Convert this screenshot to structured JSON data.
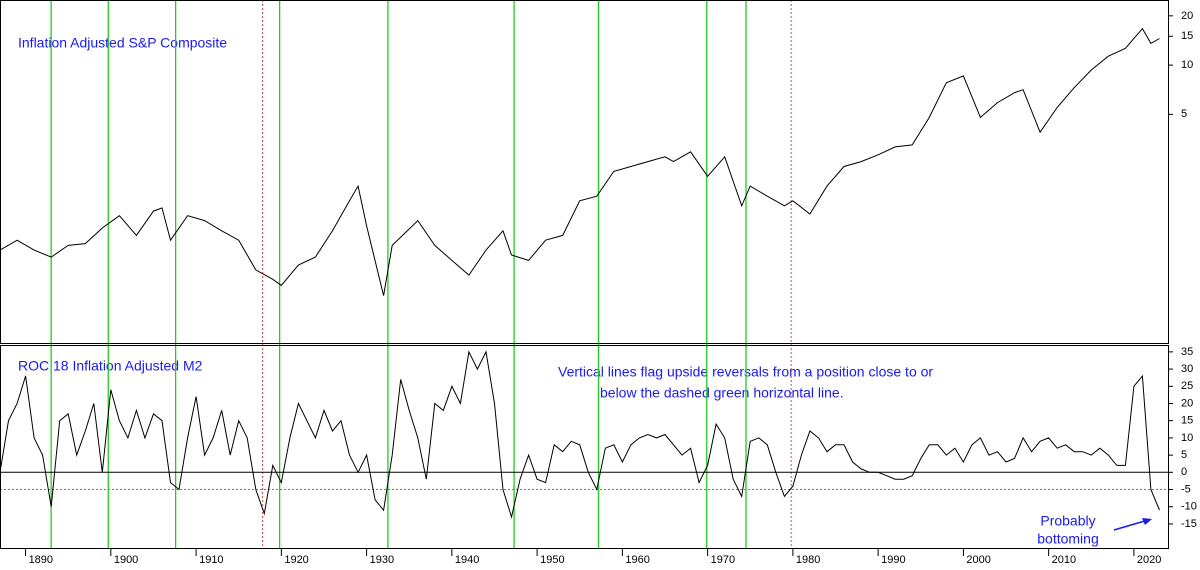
{
  "vlines": [
    {
      "x": 1893,
      "color": "#22cc22",
      "dashed": false
    },
    {
      "x": 1899.7,
      "color": "#22cc22",
      "dashed": false
    },
    {
      "x": 1907.6,
      "color": "#22cc22",
      "dashed": false
    },
    {
      "x": 1917.8,
      "color": "#e04040",
      "dashed": true
    },
    {
      "x": 1919.8,
      "color": "#22cc22",
      "dashed": false
    },
    {
      "x": 1932.5,
      "color": "#22cc22",
      "dashed": false
    },
    {
      "x": 1947.3,
      "color": "#22cc22",
      "dashed": false
    },
    {
      "x": 1957.2,
      "color": "#22cc22",
      "dashed": false
    },
    {
      "x": 1969.9,
      "color": "#22cc22",
      "dashed": false
    },
    {
      "x": 1974.5,
      "color": "#22cc22",
      "dashed": false
    },
    {
      "x": 1979.8,
      "color": "#e04040",
      "dashed": true
    }
  ],
  "chart_data": [
    {
      "type": "line",
      "title": "Inflation Adjusted S&P Composite",
      "color": "#000000",
      "log_scale": true,
      "x": [
        1887,
        1889,
        1891,
        1893,
        1895,
        1897,
        1899,
        1901,
        1903,
        1905,
        1906,
        1907,
        1909,
        1911,
        1913,
        1915,
        1917,
        1919,
        1920,
        1922,
        1924,
        1926,
        1928,
        1929,
        1930,
        1932,
        1933,
        1936,
        1938,
        1940,
        1942,
        1944,
        1946,
        1947,
        1949,
        1951,
        1953,
        1955,
        1957,
        1959,
        1961,
        1963,
        1965,
        1966,
        1968,
        1970,
        1972,
        1974,
        1975,
        1977,
        1979,
        1980,
        1982,
        1984,
        1986,
        1988,
        1990,
        1992,
        1994,
        1996,
        1998,
        2000,
        2002,
        2004,
        2006,
        2007,
        2009,
        2011,
        2013,
        2015,
        2017,
        2019,
        2021,
        2022,
        2023
      ],
      "values": [
        0.74,
        0.85,
        0.74,
        0.67,
        0.79,
        0.81,
        1.01,
        1.2,
        0.91,
        1.28,
        1.34,
        0.85,
        1.2,
        1.12,
        0.97,
        0.85,
        0.56,
        0.49,
        0.45,
        0.6,
        0.67,
        0.97,
        1.48,
        1.82,
        1.04,
        0.39,
        0.79,
        1.12,
        0.79,
        0.64,
        0.52,
        0.74,
        0.97,
        0.69,
        0.64,
        0.85,
        0.91,
        1.48,
        1.58,
        2.24,
        2.4,
        2.57,
        2.75,
        2.57,
        2.95,
        2.09,
        2.75,
        1.38,
        1.82,
        1.58,
        1.38,
        1.48,
        1.23,
        1.82,
        2.4,
        2.57,
        2.83,
        3.16,
        3.25,
        4.79,
        7.79,
        8.59,
        4.79,
        5.9,
        6.78,
        7.07,
        3.89,
        5.51,
        7.27,
        9.33,
        11.33,
        12.66,
        16.71,
        13.57,
        14.55
      ],
      "xlim": [
        1887,
        2024
      ],
      "ylim": [
        0.2,
        25
      ],
      "yticks": [
        5,
        10,
        15,
        20
      ]
    },
    {
      "type": "line",
      "title": "ROC 18 Inflation Adjusted M2",
      "color": "#000000",
      "log_scale": false,
      "annotation": [
        "Vertical lines flag upside reversals from a position close to or",
        "below the dashed green horizontal line."
      ],
      "callout": [
        "Probably",
        "bottoming"
      ],
      "hlines": [
        {
          "value": 0,
          "color": "#000000",
          "dashed": false
        },
        {
          "value": -5,
          "color": "#22bb22",
          "dashed": true
        }
      ],
      "x": [
        1887,
        1888,
        1889,
        1890,
        1891,
        1892,
        1893,
        1894,
        1895,
        1896,
        1897,
        1898,
        1899,
        1900,
        1901,
        1902,
        1903,
        1904,
        1905,
        1906,
        1907,
        1908,
        1909,
        1910,
        1911,
        1912,
        1913,
        1914,
        1915,
        1916,
        1917,
        1918,
        1919,
        1920,
        1921,
        1922,
        1923,
        1924,
        1925,
        1926,
        1927,
        1928,
        1929,
        1930,
        1931,
        1932,
        1933,
        1934,
        1935,
        1936,
        1937,
        1938,
        1939,
        1940,
        1941,
        1942,
        1943,
        1944,
        1945,
        1946,
        1947,
        1948,
        1949,
        1950,
        1951,
        1952,
        1953,
        1954,
        1955,
        1956,
        1957,
        1958,
        1959,
        1960,
        1961,
        1962,
        1963,
        1964,
        1965,
        1966,
        1967,
        1968,
        1969,
        1970,
        1971,
        1972,
        1973,
        1974,
        1975,
        1976,
        1977,
        1978,
        1979,
        1980,
        1981,
        1982,
        1983,
        1984,
        1985,
        1986,
        1987,
        1988,
        1989,
        1990,
        1991,
        1992,
        1993,
        1994,
        1995,
        1996,
        1997,
        1998,
        1999,
        2000,
        2001,
        2002,
        2003,
        2004,
        2005,
        2006,
        2007,
        2008,
        2009,
        2010,
        2011,
        2012,
        2013,
        2014,
        2015,
        2016,
        2017,
        2018,
        2019,
        2020,
        2021,
        2022,
        2023
      ],
      "values": [
        0,
        15,
        20,
        28,
        10,
        5,
        -10,
        15,
        17,
        5,
        12,
        20,
        0,
        24,
        15,
        10,
        18,
        10,
        17,
        15,
        -3,
        -5,
        10,
        22,
        5,
        10,
        18,
        5,
        15,
        10,
        -5,
        -12,
        2,
        -3,
        10,
        20,
        15,
        10,
        18,
        12,
        15,
        5,
        0,
        5,
        -8,
        -11,
        5,
        27,
        18,
        10,
        -2,
        20,
        18,
        25,
        20,
        35,
        30,
        35,
        20,
        -5,
        -13,
        -2,
        5,
        -2,
        -3,
        8,
        6,
        9,
        8,
        0,
        -5,
        7,
        8,
        3,
        8,
        10,
        11,
        10,
        11,
        8,
        5,
        7,
        -3,
        2,
        14,
        10,
        -2,
        -7,
        9,
        10,
        8,
        0,
        -7,
        -4,
        5,
        12,
        10,
        6,
        8,
        8,
        3,
        1,
        0,
        0,
        -1,
        -2,
        -2,
        -1,
        4,
        8,
        8,
        5,
        7,
        3,
        8,
        10,
        5,
        6,
        3,
        4,
        10,
        6,
        9,
        10,
        7,
        8,
        6,
        6,
        5,
        7,
        5,
        2,
        2,
        25,
        28,
        -5,
        -11
      ],
      "xlim": [
        1887,
        2024
      ],
      "xticks": [
        1890,
        1900,
        1910,
        1920,
        1930,
        1940,
        1950,
        1960,
        1970,
        1980,
        1990,
        2000,
        2010,
        2020
      ],
      "ylim": [
        -22,
        37
      ],
      "yticks": [
        -15,
        -10,
        -5,
        0,
        5,
        10,
        15,
        20,
        25,
        30,
        35
      ]
    }
  ]
}
